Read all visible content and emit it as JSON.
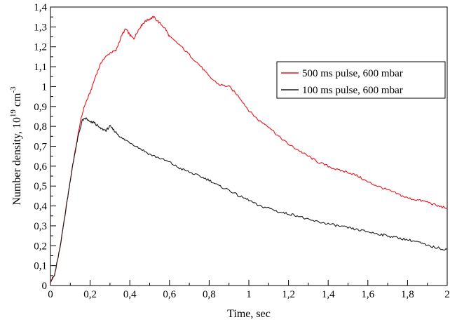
{
  "chart_data": {
    "type": "line",
    "xlabel": "Time, sec",
    "ylabel": {
      "main": "Number density, 10",
      "exp1": "19",
      "unit": " cm",
      "exp2": "-3"
    },
    "xlim": [
      0,
      2
    ],
    "ylim": [
      0,
      1.4
    ],
    "x_ticks": [
      "0",
      "0,2",
      "0,4",
      "0,6",
      "0,8",
      "1",
      "1,2",
      "1,4",
      "1,6",
      "1,8",
      "2"
    ],
    "y_ticks": [
      "0",
      "0,1",
      "0,2",
      "0,3",
      "0,4",
      "0,5",
      "0,6",
      "0,7",
      "0,8",
      "0,9",
      "1",
      "1,1",
      "1,2",
      "1,3",
      "1,4"
    ],
    "grid": false,
    "legend_position": "upper-right",
    "series": [
      {
        "name": "500 ms pulse, 600 mbar",
        "color": "#e8141a",
        "x": [
          0,
          0.02,
          0.05,
          0.08,
          0.1,
          0.12,
          0.15,
          0.17,
          0.2,
          0.23,
          0.26,
          0.3,
          0.33,
          0.36,
          0.38,
          0.4,
          0.42,
          0.44,
          0.46,
          0.48,
          0.5,
          0.52,
          0.55,
          0.58,
          0.6,
          0.65,
          0.7,
          0.75,
          0.8,
          0.85,
          0.9,
          0.95,
          1.0,
          1.05,
          1.1,
          1.15,
          1.2,
          1.25,
          1.3,
          1.35,
          1.4,
          1.45,
          1.5,
          1.55,
          1.6,
          1.65,
          1.7,
          1.75,
          1.8,
          1.85,
          1.9,
          1.95,
          2.0
        ],
        "y": [
          0.02,
          0.05,
          0.2,
          0.4,
          0.53,
          0.65,
          0.82,
          0.9,
          0.97,
          1.06,
          1.13,
          1.17,
          1.18,
          1.26,
          1.29,
          1.26,
          1.24,
          1.28,
          1.31,
          1.33,
          1.34,
          1.35,
          1.32,
          1.29,
          1.25,
          1.21,
          1.16,
          1.11,
          1.05,
          1.01,
          1.0,
          0.95,
          0.88,
          0.83,
          0.8,
          0.75,
          0.71,
          0.68,
          0.65,
          0.62,
          0.6,
          0.58,
          0.57,
          0.55,
          0.52,
          0.5,
          0.48,
          0.46,
          0.44,
          0.43,
          0.42,
          0.4,
          0.39
        ]
      },
      {
        "name": "100 ms pulse, 600 mbar",
        "color": "#1a1a1a",
        "x": [
          0,
          0.02,
          0.05,
          0.08,
          0.1,
          0.12,
          0.14,
          0.16,
          0.18,
          0.2,
          0.22,
          0.25,
          0.28,
          0.3,
          0.33,
          0.36,
          0.4,
          0.45,
          0.5,
          0.55,
          0.6,
          0.65,
          0.7,
          0.75,
          0.8,
          0.85,
          0.9,
          0.95,
          1.0,
          1.05,
          1.1,
          1.15,
          1.2,
          1.25,
          1.3,
          1.35,
          1.4,
          1.45,
          1.5,
          1.55,
          1.6,
          1.65,
          1.7,
          1.75,
          1.8,
          1.85,
          1.9,
          1.95,
          2.0
        ],
        "y": [
          0.02,
          0.05,
          0.2,
          0.4,
          0.53,
          0.65,
          0.75,
          0.83,
          0.84,
          0.82,
          0.82,
          0.79,
          0.78,
          0.8,
          0.77,
          0.74,
          0.72,
          0.69,
          0.66,
          0.64,
          0.62,
          0.59,
          0.57,
          0.55,
          0.53,
          0.5,
          0.48,
          0.45,
          0.43,
          0.4,
          0.39,
          0.37,
          0.36,
          0.35,
          0.33,
          0.32,
          0.31,
          0.3,
          0.29,
          0.28,
          0.27,
          0.26,
          0.25,
          0.24,
          0.23,
          0.22,
          0.2,
          0.19,
          0.18
        ]
      }
    ]
  }
}
